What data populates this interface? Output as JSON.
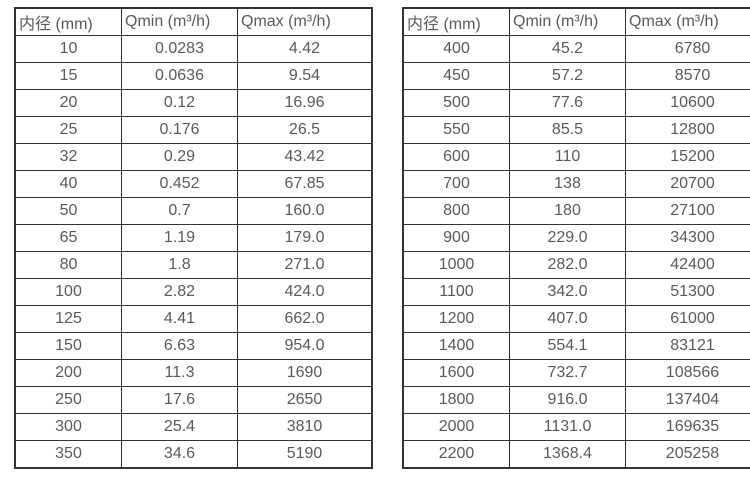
{
  "colors": {
    "border": "#333333",
    "text": "#595959",
    "background": "#ffffff"
  },
  "tables": [
    {
      "name": "flow-table-small-diameters",
      "headers": [
        "内径 (mm)",
        "Qmin (m³/h)",
        "Qmax (m³/h)"
      ],
      "header_names": [
        "header-diameter",
        "header-qmin",
        "header-qmax"
      ],
      "cell_names": [
        "cell-diameter",
        "cell-qmin",
        "cell-qmax"
      ],
      "rows": [
        [
          "10",
          "0.0283",
          "4.42"
        ],
        [
          "15",
          "0.0636",
          "9.54"
        ],
        [
          "20",
          "0.12",
          "16.96"
        ],
        [
          "25",
          "0.176",
          "26.5"
        ],
        [
          "32",
          "0.29",
          "43.42"
        ],
        [
          "40",
          "0.452",
          "67.85"
        ],
        [
          "50",
          "0.7",
          "160.0"
        ],
        [
          "65",
          "1.19",
          "179.0"
        ],
        [
          "80",
          "1.8",
          "271.0"
        ],
        [
          "100",
          "2.82",
          "424.0"
        ],
        [
          "125",
          "4.41",
          "662.0"
        ],
        [
          "150",
          "6.63",
          "954.0"
        ],
        [
          "200",
          "11.3",
          "1690"
        ],
        [
          "250",
          "17.6",
          "2650"
        ],
        [
          "300",
          "25.4",
          "3810"
        ],
        [
          "350",
          "34.6",
          "5190"
        ]
      ]
    },
    {
      "name": "flow-table-large-diameters",
      "headers": [
        "内径 (mm)",
        "Qmin (m³/h)",
        "Qmax (m³/h)"
      ],
      "header_names": [
        "header-diameter",
        "header-qmin",
        "header-qmax"
      ],
      "cell_names": [
        "cell-diameter",
        "cell-qmin",
        "cell-qmax"
      ],
      "rows": [
        [
          "400",
          "45.2",
          "6780"
        ],
        [
          "450",
          "57.2",
          "8570"
        ],
        [
          "500",
          "77.6",
          "10600"
        ],
        [
          "550",
          "85.5",
          "12800"
        ],
        [
          "600",
          "110",
          "15200"
        ],
        [
          "700",
          "138",
          "20700"
        ],
        [
          "800",
          "180",
          "27100"
        ],
        [
          "900",
          "229.0",
          "34300"
        ],
        [
          "1000",
          "282.0",
          "42400"
        ],
        [
          "1100",
          "342.0",
          "51300"
        ],
        [
          "1200",
          "407.0",
          "61000"
        ],
        [
          "1400",
          "554.1",
          "83121"
        ],
        [
          "1600",
          "732.7",
          "108566"
        ],
        [
          "1800",
          "916.0",
          "137404"
        ],
        [
          "2000",
          "1131.0",
          "169635"
        ],
        [
          "2200",
          "1368.4",
          "205258"
        ]
      ]
    }
  ]
}
